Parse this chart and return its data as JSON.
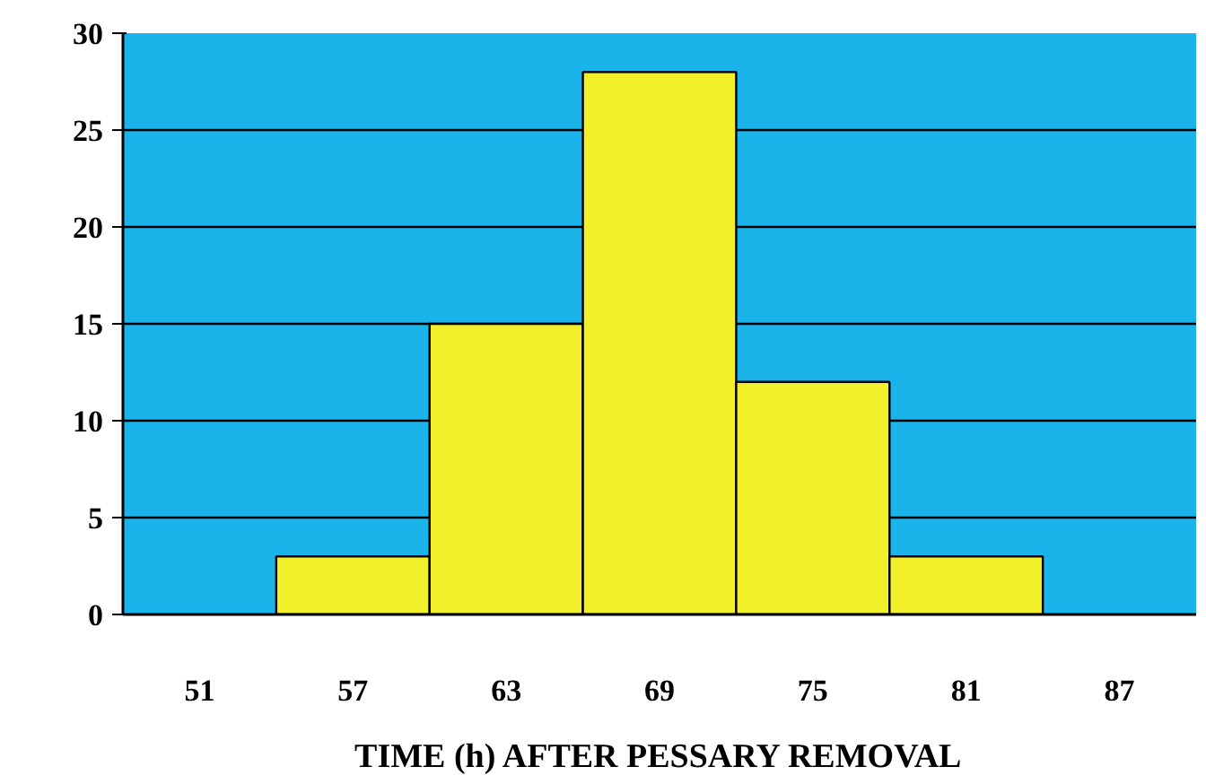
{
  "chart_data": {
    "type": "bar",
    "xlabel": "TIME (h) AFTER PESSARY REMOVAL",
    "categories": [
      "51",
      "57",
      "63",
      "69",
      "75",
      "81",
      "87"
    ],
    "values": [
      0,
      3,
      15,
      28,
      12,
      3,
      0
    ],
    "color": "#f2f02a",
    "ylim": [
      0,
      30
    ],
    "yticks": [
      0,
      5,
      10,
      15,
      20,
      25,
      30
    ],
    "grid": "y"
  }
}
